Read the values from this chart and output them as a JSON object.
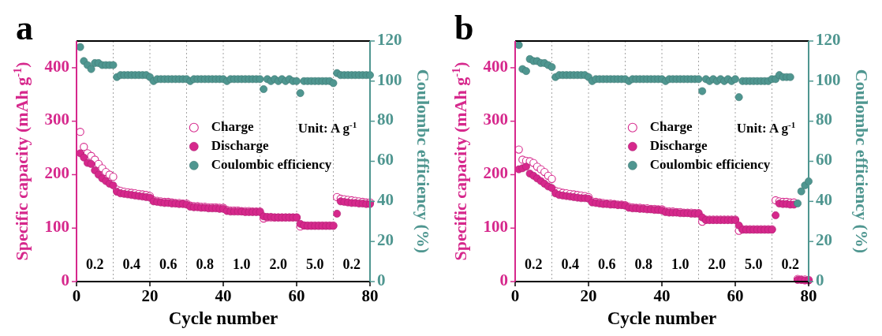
{
  "chart_data": [
    {
      "type": "scatter",
      "title": "a",
      "xlabel": "Cycle number",
      "ylabel": "Specific capacity (mAh g$^{-1}$)",
      "y2label": "Coulombc efficiency (%)",
      "x": [
        1,
        2,
        3,
        4,
        5,
        6,
        7,
        8,
        9,
        10,
        11,
        12,
        13,
        14,
        15,
        16,
        17,
        18,
        19,
        20,
        21,
        22,
        23,
        24,
        25,
        26,
        27,
        28,
        29,
        30,
        31,
        32,
        33,
        34,
        35,
        36,
        37,
        38,
        39,
        40,
        41,
        42,
        43,
        44,
        45,
        46,
        47,
        48,
        49,
        50,
        51,
        52,
        53,
        54,
        55,
        56,
        57,
        58,
        59,
        60,
        61,
        62,
        63,
        64,
        65,
        66,
        67,
        68,
        69,
        70,
        71,
        72,
        73,
        74,
        75,
        76,
        77,
        78,
        79,
        80
      ],
      "xlim": [
        0,
        80
      ],
      "xticks": [
        0,
        20,
        40,
        60,
        80
      ],
      "ylim": [
        0,
        450
      ],
      "yticks": [
        0,
        100,
        200,
        300,
        400
      ],
      "y2lim": [
        0,
        120
      ],
      "y2ticks": [
        0,
        20,
        40,
        60,
        80,
        100,
        120
      ],
      "marker": "circle",
      "grid": false,
      "legend": "center",
      "series": [
        {
          "name": "Charge",
          "color": "#d6288c",
          "values": [
            280,
            252,
            240,
            235,
            228,
            220,
            212,
            205,
            200,
            196,
            172,
            170,
            168,
            167,
            166,
            165,
            164,
            163,
            162,
            160,
            152,
            151,
            150,
            149,
            149,
            148,
            147,
            147,
            146,
            146,
            142,
            141,
            141,
            140,
            140,
            139,
            139,
            139,
            138,
            138,
            134,
            133,
            133,
            133,
            132,
            132,
            132,
            131,
            131,
            131,
            118,
            120,
            120,
            120,
            120,
            120,
            120,
            120,
            120,
            120,
            103,
            105,
            105,
            105,
            105,
            105,
            105,
            105,
            105,
            105,
            158,
            155,
            154,
            153,
            152,
            151,
            150,
            149,
            148,
            148
          ]
        },
        {
          "name": "Discharge",
          "color": "#d6288c",
          "values": [
            240,
            232,
            222,
            220,
            208,
            200,
            193,
            188,
            183,
            180,
            168,
            165,
            164,
            163,
            162,
            161,
            160,
            159,
            158,
            157,
            150,
            149,
            148,
            147,
            147,
            146,
            146,
            145,
            145,
            144,
            140,
            139,
            139,
            138,
            138,
            137,
            137,
            137,
            136,
            136,
            132,
            131,
            131,
            131,
            131,
            130,
            130,
            130,
            130,
            130,
            122,
            121,
            121,
            120,
            120,
            120,
            120,
            120,
            120,
            120,
            108,
            105,
            104,
            104,
            104,
            104,
            104,
            104,
            104,
            104,
            127,
            150,
            149,
            148,
            147,
            147,
            146,
            146,
            145,
            145
          ]
        },
        {
          "name": "Coulombic efficiency",
          "color": "#4f9690",
          "axis": "y2",
          "values": [
            117,
            110,
            108,
            106,
            109,
            109,
            108,
            108,
            108,
            108,
            102,
            103,
            103,
            103,
            103,
            103,
            103,
            103,
            103,
            102,
            100,
            101,
            101,
            101,
            101,
            101,
            101,
            101,
            101,
            101,
            100,
            101,
            101,
            101,
            101,
            101,
            101,
            101,
            101,
            101,
            100,
            101,
            101,
            101,
            101,
            101,
            101,
            101,
            101,
            101,
            96,
            101,
            100,
            101,
            100,
            101,
            100,
            101,
            100,
            100,
            94,
            100,
            100,
            100,
            100,
            100,
            100,
            100,
            100,
            99,
            104,
            103,
            103,
            103,
            103,
            103,
            103,
            103,
            103,
            103
          ]
        }
      ],
      "ref_lines": [
        {
          "axis": "x",
          "value": 10,
          "color": "#9a9a9a",
          "line_style": "dotted"
        },
        {
          "axis": "x",
          "value": 20,
          "color": "#9a9a9a",
          "line_style": "dotted"
        },
        {
          "axis": "x",
          "value": 30,
          "color": "#9a9a9a",
          "line_style": "dotted"
        },
        {
          "axis": "x",
          "value": 40,
          "color": "#9a9a9a",
          "line_style": "dotted"
        },
        {
          "axis": "x",
          "value": 50,
          "color": "#9a9a9a",
          "line_style": "dotted"
        },
        {
          "axis": "x",
          "value": 60,
          "color": "#9a9a9a",
          "line_style": "dotted"
        },
        {
          "axis": "x",
          "value": 70,
          "color": "#9a9a9a",
          "line_style": "dotted"
        }
      ],
      "annotations": [
        "Unit: A g$^{-1}$",
        "0.2",
        "0.4",
        "0.6",
        "0.8",
        "1.0",
        "2.0",
        "5.0",
        "0.2"
      ]
    },
    {
      "type": "scatter",
      "title": "b",
      "xlabel": "Cycle number",
      "ylabel": "Specific capacity (mAh g$^{-1}$)",
      "y2label": "Coulombc efficiency (%)",
      "x": [
        1,
        2,
        3,
        4,
        5,
        6,
        7,
        8,
        9,
        10,
        11,
        12,
        13,
        14,
        15,
        16,
        17,
        18,
        19,
        20,
        21,
        22,
        23,
        24,
        25,
        26,
        27,
        28,
        29,
        30,
        31,
        32,
        33,
        34,
        35,
        36,
        37,
        38,
        39,
        40,
        41,
        42,
        43,
        44,
        45,
        46,
        47,
        48,
        49,
        50,
        51,
        52,
        53,
        54,
        55,
        56,
        57,
        58,
        59,
        60,
        61,
        62,
        63,
        64,
        65,
        66,
        67,
        68,
        69,
        70,
        71,
        72,
        73,
        74,
        75,
        76,
        77,
        78,
        79,
        80
      ],
      "xlim": [
        0,
        80
      ],
      "xticks": [
        0,
        20,
        40,
        60,
        80
      ],
      "ylim": [
        0,
        450
      ],
      "yticks": [
        0,
        100,
        200,
        300,
        400
      ],
      "y2lim": [
        0,
        120
      ],
      "y2ticks": [
        0,
        20,
        40,
        60,
        80,
        100,
        120
      ],
      "marker": "circle",
      "grid": false,
      "legend": "center",
      "series": [
        {
          "name": "Charge",
          "color": "#d6288c",
          "values": [
            247,
            228,
            226,
            225,
            222,
            215,
            210,
            205,
            198,
            192,
            170,
            168,
            166,
            165,
            164,
            163,
            162,
            161,
            160,
            158,
            150,
            149,
            148,
            147,
            146,
            146,
            145,
            144,
            144,
            143,
            140,
            139,
            138,
            138,
            137,
            137,
            136,
            136,
            135,
            135,
            132,
            131,
            131,
            130,
            130,
            129,
            129,
            129,
            128,
            128,
            112,
            116,
            116,
            116,
            116,
            116,
            116,
            116,
            116,
            116,
            95,
            98,
            98,
            98,
            98,
            98,
            98,
            98,
            98,
            98,
            152,
            150,
            149,
            149,
            148,
            148,
            5,
            4,
            4,
            3
          ]
        },
        {
          "name": "Discharge",
          "color": "#d6288c",
          "values": [
            210,
            212,
            215,
            202,
            198,
            193,
            188,
            183,
            178,
            175,
            165,
            162,
            161,
            160,
            159,
            158,
            157,
            156,
            156,
            155,
            148,
            147,
            146,
            145,
            145,
            144,
            144,
            143,
            143,
            142,
            138,
            137,
            137,
            136,
            136,
            135,
            135,
            134,
            134,
            133,
            130,
            129,
            129,
            129,
            128,
            128,
            128,
            127,
            127,
            127,
            120,
            115,
            115,
            115,
            115,
            115,
            115,
            115,
            115,
            115,
            105,
            97,
            97,
            97,
            97,
            97,
            97,
            97,
            97,
            97,
            124,
            146,
            145,
            145,
            144,
            144,
            3,
            3,
            2,
            2
          ]
        },
        {
          "name": "Coulombic efficiency",
          "color": "#4f9690",
          "axis": "y2",
          "values": [
            118,
            106,
            105,
            111,
            110,
            110,
            109,
            109,
            108,
            107,
            102,
            103,
            103,
            103,
            103,
            103,
            103,
            103,
            103,
            102,
            100,
            101,
            101,
            101,
            101,
            101,
            101,
            101,
            101,
            101,
            100,
            101,
            101,
            101,
            101,
            101,
            101,
            101,
            101,
            101,
            100,
            101,
            101,
            101,
            101,
            101,
            101,
            101,
            101,
            101,
            95,
            101,
            100,
            101,
            100,
            101,
            100,
            101,
            100,
            101,
            92,
            100,
            100,
            100,
            100,
            100,
            100,
            100,
            100,
            101,
            101,
            103,
            102,
            102,
            102,
            null,
            39,
            45,
            48,
            50
          ]
        }
      ],
      "ref_lines": [
        {
          "axis": "x",
          "value": 10,
          "color": "#9a9a9a",
          "line_style": "dotted"
        },
        {
          "axis": "x",
          "value": 20,
          "color": "#9a9a9a",
          "line_style": "dotted"
        },
        {
          "axis": "x",
          "value": 30,
          "color": "#9a9a9a",
          "line_style": "dotted"
        },
        {
          "axis": "x",
          "value": 40,
          "color": "#9a9a9a",
          "line_style": "dotted"
        },
        {
          "axis": "x",
          "value": 50,
          "color": "#9a9a9a",
          "line_style": "dotted"
        },
        {
          "axis": "x",
          "value": 60,
          "color": "#9a9a9a",
          "line_style": "dotted"
        },
        {
          "axis": "x",
          "value": 70,
          "color": "#9a9a9a",
          "line_style": "dotted"
        }
      ],
      "annotations": [
        "Unit: A g$^{-1}$",
        "0.2",
        "0.4",
        "0.6",
        "0.8",
        "1.0",
        "2.0",
        "5.0",
        "0.2"
      ]
    }
  ]
}
